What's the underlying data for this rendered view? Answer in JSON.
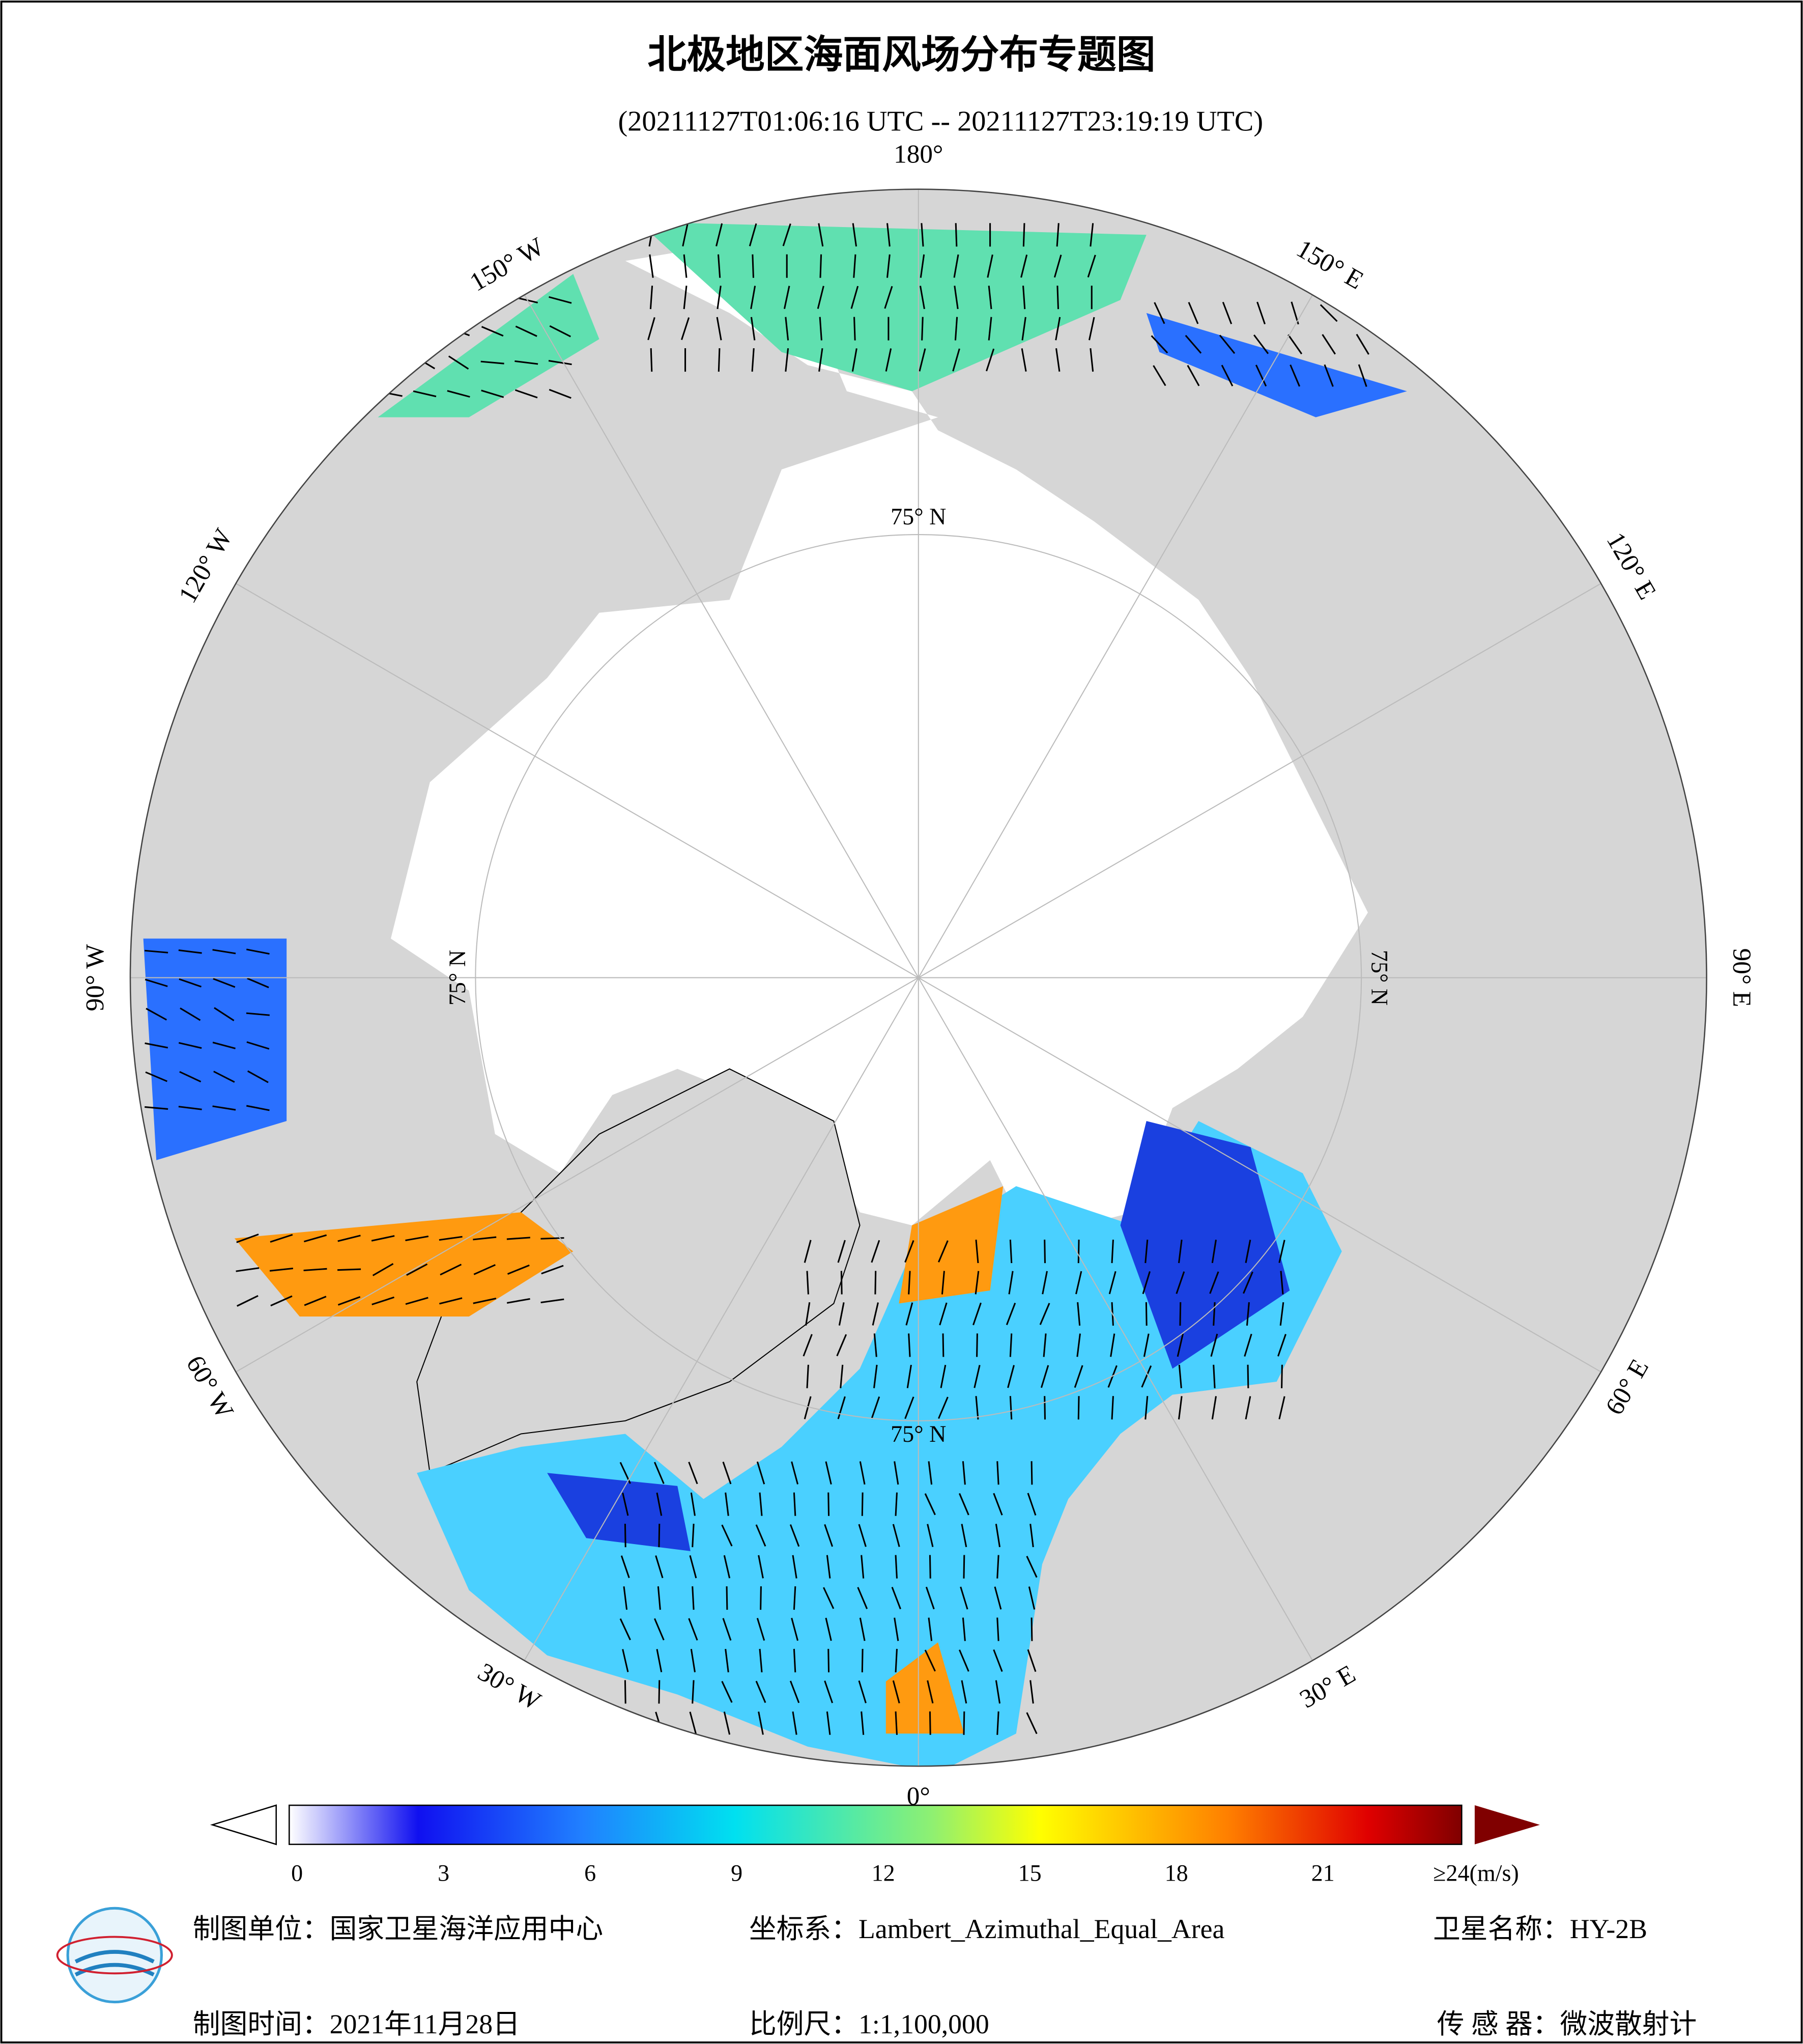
{
  "header": {
    "title": "北极地区海面风场分布专题图",
    "subtitle": "(20211127T01:06:16 UTC -- 20211127T23:19:19 UTC)"
  },
  "map": {
    "longitude_labels": [
      "180°",
      "150° E",
      "120° E",
      "90° E",
      "60° E",
      "30° E",
      "0°",
      "30° W",
      "60° W",
      "90° W",
      "120° W",
      "150° W"
    ],
    "latitude_labels": [
      "75° N",
      "75° N",
      "75° N",
      "75° N"
    ]
  },
  "colorbar": {
    "ticks": [
      0,
      3,
      6,
      9,
      12,
      15,
      18,
      21
    ],
    "max_label": "≥24(m/s)"
  },
  "footer": {
    "producer": "制图单位：国家卫星海洋应用中心",
    "projection": "坐标系：Lambert_Azimuthal_Equal_Area",
    "satellite": "卫星名称：HY-2B",
    "date": "制图时间：2021年11月28日",
    "scale": "比例尺：1:1,100,000",
    "sensor": "传 感 器：微波散射计"
  }
}
